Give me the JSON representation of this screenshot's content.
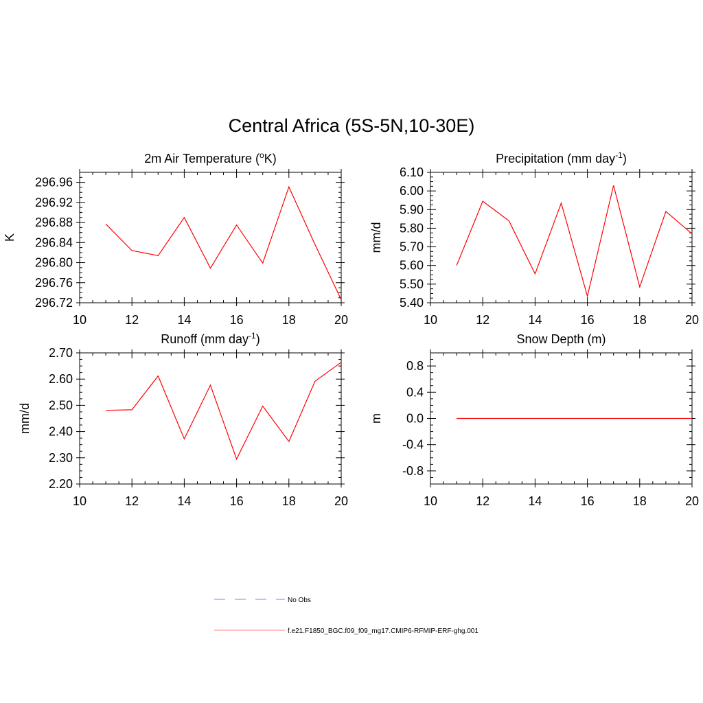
{
  "title": "Central Africa (5S-5N,10-30E)",
  "chart_data": [
    {
      "type": "line",
      "title": "2m Air Temperature (",
      "title_sup": "o",
      "title_suffix": "K)",
      "ylabel": "K",
      "xlim": [
        10,
        20
      ],
      "ylim": [
        296.72,
        296.98
      ],
      "xticks": [
        10,
        12,
        14,
        16,
        18,
        20
      ],
      "xticks_labels": [
        "10",
        "12",
        "14",
        "16",
        "18",
        "20"
      ],
      "yticks": [
        296.72,
        296.76,
        296.8,
        296.84,
        296.88,
        296.92,
        296.96
      ],
      "yticks_labels": [
        "296.72",
        "296.76",
        "296.80",
        "296.84",
        "296.88",
        "296.92",
        "296.96"
      ],
      "series": [
        {
          "color": "#ff0000",
          "x": [
            11,
            12,
            13,
            14,
            15,
            16,
            17,
            18,
            19,
            20
          ],
          "y": [
            296.877,
            296.824,
            296.814,
            296.89,
            296.789,
            296.875,
            296.799,
            296.951,
            296.836,
            296.726
          ]
        }
      ]
    },
    {
      "type": "line",
      "title": "Precipitation (mm day",
      "title_sup": "-1",
      "title_suffix": ")",
      "ylabel": "mm/d",
      "xlim": [
        10,
        20
      ],
      "ylim": [
        5.4,
        6.1
      ],
      "xticks": [
        10,
        12,
        14,
        16,
        18,
        20
      ],
      "xticks_labels": [
        "10",
        "12",
        "14",
        "16",
        "18",
        "20"
      ],
      "yticks": [
        5.4,
        5.5,
        5.6,
        5.7,
        5.8,
        5.9,
        6.0,
        6.1
      ],
      "yticks_labels": [
        "5.40",
        "5.50",
        "5.60",
        "5.70",
        "5.80",
        "5.90",
        "6.00",
        "6.10"
      ],
      "series": [
        {
          "color": "#ff0000",
          "x": [
            11,
            12,
            13,
            14,
            15,
            16,
            17,
            18,
            19,
            20
          ],
          "y": [
            5.6,
            5.945,
            5.84,
            5.555,
            5.935,
            5.435,
            6.03,
            5.485,
            5.89,
            5.77
          ]
        }
      ]
    },
    {
      "type": "line",
      "title": "Runoff (mm day",
      "title_sup": "-1",
      "title_suffix": ")",
      "ylabel": "mm/d",
      "xlim": [
        10,
        20
      ],
      "ylim": [
        2.2,
        2.7
      ],
      "xticks": [
        10,
        12,
        14,
        16,
        18,
        20
      ],
      "xticks_labels": [
        "10",
        "12",
        "14",
        "16",
        "18",
        "20"
      ],
      "yticks": [
        2.2,
        2.3,
        2.4,
        2.5,
        2.6,
        2.7
      ],
      "yticks_labels": [
        "2.20",
        "2.30",
        "2.40",
        "2.50",
        "2.60",
        "2.70"
      ],
      "series": [
        {
          "color": "#ff0000",
          "x": [
            11,
            12,
            13,
            14,
            15,
            16,
            17,
            18,
            19,
            20
          ],
          "y": [
            2.481,
            2.483,
            2.612,
            2.372,
            2.577,
            2.295,
            2.497,
            2.362,
            2.592,
            2.664
          ]
        }
      ]
    },
    {
      "type": "line",
      "title": "Snow Depth (m)",
      "title_sup": "",
      "title_suffix": "",
      "ylabel": "m",
      "xlim": [
        10,
        20
      ],
      "ylim": [
        -1.0,
        1.0
      ],
      "xticks": [
        10,
        12,
        14,
        16,
        18,
        20
      ],
      "xticks_labels": [
        "10",
        "12",
        "14",
        "16",
        "18",
        "20"
      ],
      "yticks": [
        -0.8,
        -0.4,
        0.0,
        0.4,
        0.8
      ],
      "yticks_labels": [
        "-0.8",
        "-0.4",
        "0.0",
        "0.4",
        "0.8"
      ],
      "series": [
        {
          "color": "#ff0000",
          "x": [
            11,
            12,
            13,
            14,
            15,
            16,
            17,
            18,
            19,
            20
          ],
          "y": [
            0,
            0,
            0,
            0,
            0,
            0,
            0,
            0,
            0,
            0
          ]
        }
      ]
    }
  ],
  "legend": [
    {
      "label": "No Obs",
      "color": "#9999ff",
      "style": "dashed"
    },
    {
      "label": "f.e21.F1850_BGC.f09_f09_mg17.CMIP6-RFMIP-ERF-ghg.001",
      "color": "#ff9999",
      "style": "solid"
    }
  ]
}
